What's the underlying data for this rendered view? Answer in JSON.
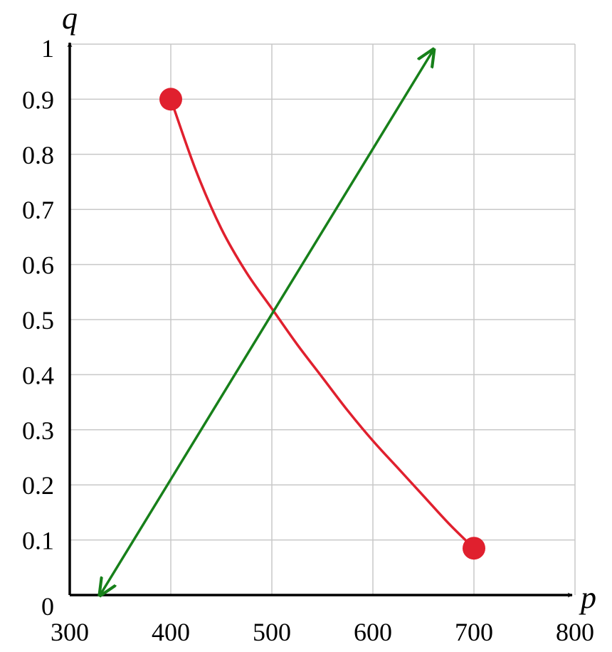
{
  "chart_data": {
    "type": "line",
    "title": "",
    "xlabel": "p",
    "ylabel": "q",
    "xlim": [
      300,
      800
    ],
    "ylim": [
      0,
      1
    ],
    "grid": true,
    "x_ticks": [
      "300",
      "400",
      "500",
      "600",
      "700",
      "800"
    ],
    "y_ticks": [
      "0",
      "0.1",
      "0.2",
      "0.3",
      "0.4",
      "0.5",
      "0.6",
      "0.7",
      "0.8",
      "0.9",
      "1"
    ],
    "series": [
      {
        "kind": "curve",
        "color": "#e0202e",
        "arrows": "none",
        "endpoint_markers": true,
        "x": [
          400,
          425,
          450,
          475,
          500,
          525,
          550,
          575,
          600,
          625,
          650,
          675,
          700
        ],
        "y": [
          0.9,
          0.77,
          0.665,
          0.585,
          0.52,
          0.455,
          0.395,
          0.335,
          0.28,
          0.23,
          0.18,
          0.13,
          0.085
        ]
      },
      {
        "kind": "line",
        "color": "#17801a",
        "arrows": "both",
        "endpoint_markers": false,
        "x": [
          330,
          660
        ],
        "y": [
          0.0,
          0.99
        ]
      }
    ],
    "colors": {
      "grid": "#c8c8c8",
      "axis": "#000000"
    }
  }
}
